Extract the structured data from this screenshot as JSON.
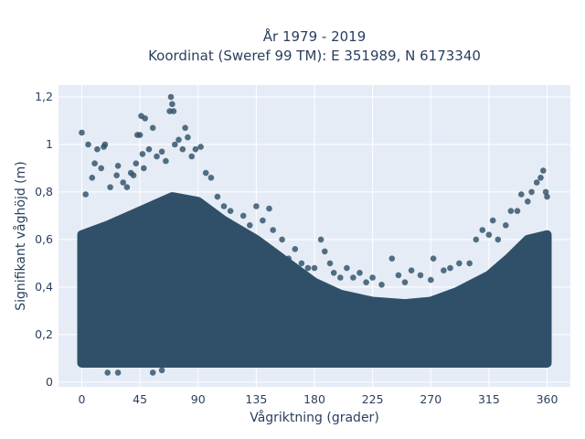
{
  "chart_data": {
    "type": "scatter",
    "title_line1": "År 1979 - 2019",
    "title_line2": "Koordinat (Sweref 99 TM): E 351989, N 6173340",
    "xlabel": "Vågriktning (grader)",
    "ylabel": "Signifikant våghöjd (m)",
    "xlim": [
      -18,
      378
    ],
    "ylim": [
      -0.02,
      1.25
    ],
    "x_ticks": [
      0,
      45,
      90,
      135,
      180,
      225,
      270,
      315,
      360
    ],
    "y_ticks": [
      0,
      0.2,
      0.4,
      0.6,
      0.8,
      1,
      1.2
    ],
    "y_tick_labels": [
      "0",
      "0,2",
      "0,4",
      "0,6",
      "0,8",
      "1",
      "1,2"
    ],
    "grid": true,
    "colors": {
      "marker": "#2f5068",
      "plot_bg": "#e5ecf6",
      "grid": "#ffffff"
    },
    "density_envelope": {
      "direction": [
        0,
        20,
        45,
        70,
        90,
        110,
        135,
        160,
        180,
        200,
        225,
        250,
        270,
        290,
        315,
        330,
        345,
        360
      ],
      "min_height": [
        0.08,
        0.08,
        0.08,
        0.08,
        0.08,
        0.08,
        0.08,
        0.08,
        0.08,
        0.08,
        0.08,
        0.08,
        0.08,
        0.08,
        0.08,
        0.08,
        0.08,
        0.08
      ],
      "dense_upper": [
        0.62,
        0.66,
        0.72,
        0.78,
        0.76,
        0.68,
        0.6,
        0.5,
        0.42,
        0.37,
        0.34,
        0.33,
        0.34,
        0.38,
        0.45,
        0.52,
        0.6,
        0.62
      ]
    },
    "points": [
      {
        "x": 0,
        "y": 1.05
      },
      {
        "x": 3,
        "y": 0.79
      },
      {
        "x": 5,
        "y": 1.0
      },
      {
        "x": 8,
        "y": 0.86
      },
      {
        "x": 10,
        "y": 0.92
      },
      {
        "x": 12,
        "y": 0.98
      },
      {
        "x": 15,
        "y": 0.9
      },
      {
        "x": 17,
        "y": 0.99
      },
      {
        "x": 18,
        "y": 1.0
      },
      {
        "x": 22,
        "y": 0.82
      },
      {
        "x": 27,
        "y": 0.87
      },
      {
        "x": 28,
        "y": 0.91
      },
      {
        "x": 32,
        "y": 0.84
      },
      {
        "x": 35,
        "y": 0.82
      },
      {
        "x": 38,
        "y": 0.88
      },
      {
        "x": 40,
        "y": 0.87
      },
      {
        "x": 42,
        "y": 0.92
      },
      {
        "x": 43,
        "y": 1.04
      },
      {
        "x": 45,
        "y": 1.04
      },
      {
        "x": 46,
        "y": 1.12
      },
      {
        "x": 47,
        "y": 0.96
      },
      {
        "x": 48,
        "y": 0.9
      },
      {
        "x": 49,
        "y": 1.11
      },
      {
        "x": 52,
        "y": 0.98
      },
      {
        "x": 55,
        "y": 1.07
      },
      {
        "x": 58,
        "y": 0.95
      },
      {
        "x": 62,
        "y": 0.97
      },
      {
        "x": 65,
        "y": 0.93
      },
      {
        "x": 68,
        "y": 1.14
      },
      {
        "x": 69,
        "y": 1.2
      },
      {
        "x": 70,
        "y": 1.17
      },
      {
        "x": 71,
        "y": 1.14
      },
      {
        "x": 72,
        "y": 1.0
      },
      {
        "x": 75,
        "y": 1.02
      },
      {
        "x": 78,
        "y": 0.98
      },
      {
        "x": 80,
        "y": 1.07
      },
      {
        "x": 82,
        "y": 1.03
      },
      {
        "x": 85,
        "y": 0.95
      },
      {
        "x": 88,
        "y": 0.98
      },
      {
        "x": 92,
        "y": 0.99
      },
      {
        "x": 96,
        "y": 0.88
      },
      {
        "x": 100,
        "y": 0.86
      },
      {
        "x": 105,
        "y": 0.78
      },
      {
        "x": 110,
        "y": 0.74
      },
      {
        "x": 115,
        "y": 0.72
      },
      {
        "x": 125,
        "y": 0.7
      },
      {
        "x": 130,
        "y": 0.66
      },
      {
        "x": 135,
        "y": 0.74
      },
      {
        "x": 140,
        "y": 0.68
      },
      {
        "x": 145,
        "y": 0.73
      },
      {
        "x": 148,
        "y": 0.64
      },
      {
        "x": 155,
        "y": 0.6
      },
      {
        "x": 160,
        "y": 0.52
      },
      {
        "x": 165,
        "y": 0.56
      },
      {
        "x": 170,
        "y": 0.5
      },
      {
        "x": 175,
        "y": 0.48
      },
      {
        "x": 180,
        "y": 0.48
      },
      {
        "x": 185,
        "y": 0.6
      },
      {
        "x": 188,
        "y": 0.55
      },
      {
        "x": 192,
        "y": 0.5
      },
      {
        "x": 195,
        "y": 0.46
      },
      {
        "x": 200,
        "y": 0.44
      },
      {
        "x": 205,
        "y": 0.48
      },
      {
        "x": 210,
        "y": 0.44
      },
      {
        "x": 215,
        "y": 0.46
      },
      {
        "x": 220,
        "y": 0.42
      },
      {
        "x": 225,
        "y": 0.44
      },
      {
        "x": 232,
        "y": 0.41
      },
      {
        "x": 240,
        "y": 0.52
      },
      {
        "x": 245,
        "y": 0.45
      },
      {
        "x": 250,
        "y": 0.42
      },
      {
        "x": 255,
        "y": 0.47
      },
      {
        "x": 262,
        "y": 0.45
      },
      {
        "x": 270,
        "y": 0.43
      },
      {
        "x": 272,
        "y": 0.52
      },
      {
        "x": 280,
        "y": 0.47
      },
      {
        "x": 285,
        "y": 0.48
      },
      {
        "x": 292,
        "y": 0.5
      },
      {
        "x": 300,
        "y": 0.5
      },
      {
        "x": 305,
        "y": 0.6
      },
      {
        "x": 310,
        "y": 0.64
      },
      {
        "x": 315,
        "y": 0.62
      },
      {
        "x": 318,
        "y": 0.68
      },
      {
        "x": 322,
        "y": 0.6
      },
      {
        "x": 328,
        "y": 0.66
      },
      {
        "x": 332,
        "y": 0.72
      },
      {
        "x": 337,
        "y": 0.72
      },
      {
        "x": 340,
        "y": 0.79
      },
      {
        "x": 345,
        "y": 0.76
      },
      {
        "x": 348,
        "y": 0.8
      },
      {
        "x": 352,
        "y": 0.84
      },
      {
        "x": 355,
        "y": 0.86
      },
      {
        "x": 357,
        "y": 0.89
      },
      {
        "x": 359,
        "y": 0.8
      },
      {
        "x": 360,
        "y": 0.78
      },
      {
        "x": 20,
        "y": 0.04
      },
      {
        "x": 28,
        "y": 0.04
      },
      {
        "x": 55,
        "y": 0.04
      },
      {
        "x": 62,
        "y": 0.05
      }
    ]
  }
}
